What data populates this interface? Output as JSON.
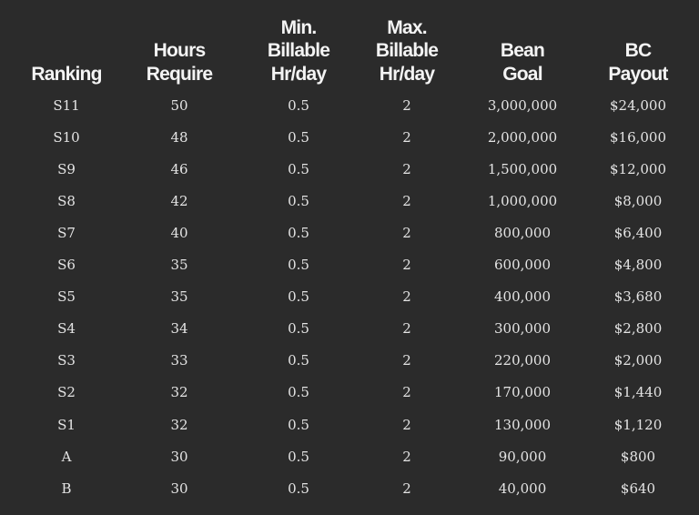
{
  "table": {
    "headers": [
      [
        "Ranking"
      ],
      [
        "Hours",
        "Require"
      ],
      [
        "Min.",
        "Billable",
        "Hr/day"
      ],
      [
        "Max.",
        "Billable",
        "Hr/day"
      ],
      [
        "Bean",
        "Goal"
      ],
      [
        "BC",
        "Payout"
      ]
    ],
    "rows": [
      [
        "S11",
        "50",
        "0.5",
        "2",
        "3,000,000",
        "$24,000"
      ],
      [
        "S10",
        "48",
        "0.5",
        "2",
        "2,000,000",
        "$16,000"
      ],
      [
        "S9",
        "46",
        "0.5",
        "2",
        "1,500,000",
        "$12,000"
      ],
      [
        "S8",
        "42",
        "0.5",
        "2",
        "1,000,000",
        "$8,000"
      ],
      [
        "S7",
        "40",
        "0.5",
        "2",
        "800,000",
        "$6,400"
      ],
      [
        "S6",
        "35",
        "0.5",
        "2",
        "600,000",
        "$4,800"
      ],
      [
        "S5",
        "35",
        "0.5",
        "2",
        "400,000",
        "$3,680"
      ],
      [
        "S4",
        "34",
        "0.5",
        "2",
        "300,000",
        "$2,800"
      ],
      [
        "S3",
        "33",
        "0.5",
        "2",
        "220,000",
        "$2,000"
      ],
      [
        "S2",
        "32",
        "0.5",
        "2",
        "170,000",
        "$1,440"
      ],
      [
        "S1",
        "32",
        "0.5",
        "2",
        "130,000",
        "$1,120"
      ],
      [
        "A",
        "30",
        "0.5",
        "2",
        "90,000",
        "$800"
      ],
      [
        "B",
        "30",
        "0.5",
        "2",
        "40,000",
        "$640"
      ]
    ]
  },
  "colors": {
    "background": "#2b2b2b",
    "text": "#ececec"
  }
}
